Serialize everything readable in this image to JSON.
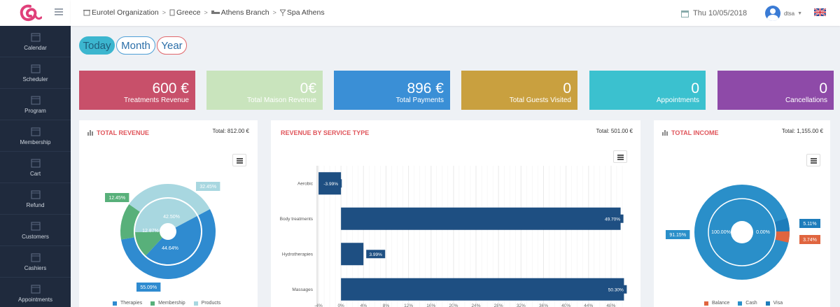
{
  "sidebar": {
    "items": [
      {
        "label": "Calendar",
        "icon": "calendar-icon"
      },
      {
        "label": "Scheduler",
        "icon": "scheduler-icon"
      },
      {
        "label": "Program",
        "icon": "program-icon"
      },
      {
        "label": "Membership",
        "icon": "membership-icon"
      },
      {
        "label": "Cart",
        "icon": "cart-icon"
      },
      {
        "label": "Refund",
        "icon": "refund-icon"
      },
      {
        "label": "Customers",
        "icon": "customers-icon"
      },
      {
        "label": "Cashiers",
        "icon": "cashiers-icon"
      },
      {
        "label": "Appointments",
        "icon": "appointments-icon"
      }
    ]
  },
  "header": {
    "breadcrumb": [
      "Eurotel Organization",
      "Greece",
      "Athens Branch",
      "Spa Athens"
    ],
    "date": "Thu 10/05/2018",
    "user": "dtsa"
  },
  "periods": {
    "today": "Today",
    "month": "Month",
    "year": "Year"
  },
  "cards": [
    {
      "value": "600 €",
      "label": "Treatments Revenue",
      "color": "#c8506a"
    },
    {
      "value": "0€",
      "label": "Total Maison Revenue",
      "color": "#c9e4bd"
    },
    {
      "value": "896 €",
      "label": "Total Payments",
      "color": "#3a8fd6"
    },
    {
      "value": "0",
      "label": "Total Guests Visited",
      "color": "#c9a03f"
    },
    {
      "value": "0",
      "label": "Appointments",
      "color": "#3bc1cf"
    },
    {
      "value": "0",
      "label": "Cancellations",
      "color": "#8e4aa8"
    }
  ],
  "panels": {
    "total_revenue": {
      "title": "TOTAL REVENUE",
      "total": "Total: 812.00 €"
    },
    "revenue_by_service": {
      "title": "REVENUE BY SERVICE TYPE",
      "total": "Total: 501.00 €"
    },
    "total_income": {
      "title": "TOTAL INCOME",
      "total": "Total: 1,155.00 €"
    }
  },
  "chart_data": [
    {
      "type": "pie",
      "title": "TOTAL REVENUE",
      "categories": [
        "Therapies",
        "Membership",
        "Products"
      ],
      "outer_values": [
        55.09,
        12.45,
        32.45
      ],
      "inner_values": [
        44.64,
        12.87,
        42.5
      ],
      "colors": [
        "#2f8bd0",
        "#58b07a",
        "#a8d7e0"
      ]
    },
    {
      "type": "bar",
      "orientation": "horizontal",
      "title": "REVENUE BY SERVICE TYPE",
      "categories": [
        "Aerobic",
        "Body treatments",
        "Hydrotherapies",
        "Massages"
      ],
      "values": [
        -3.99,
        49.7,
        3.99,
        50.3
      ],
      "labels": [
        "-3.99%",
        "49.70%",
        "3.99%",
        "50.30%"
      ],
      "xticks": [
        "-4%",
        "0%",
        "4%",
        "8%",
        "12%",
        "16%",
        "20%",
        "24%",
        "28%",
        "32%",
        "36%",
        "40%",
        "44%",
        "48%"
      ],
      "xlim": [
        -4,
        50
      ],
      "color": "#1e4f82",
      "grid": true
    },
    {
      "type": "pie",
      "title": "TOTAL INCOME",
      "categories": [
        "Balance",
        "Cash",
        "Visa"
      ],
      "outer_values": [
        3.74,
        91.15,
        5.11
      ],
      "inner_values": [
        0.0,
        100.0,
        0.0
      ],
      "colors": [
        "#e0653f",
        "#2a8fc9",
        "#1e7dbb"
      ]
    }
  ]
}
